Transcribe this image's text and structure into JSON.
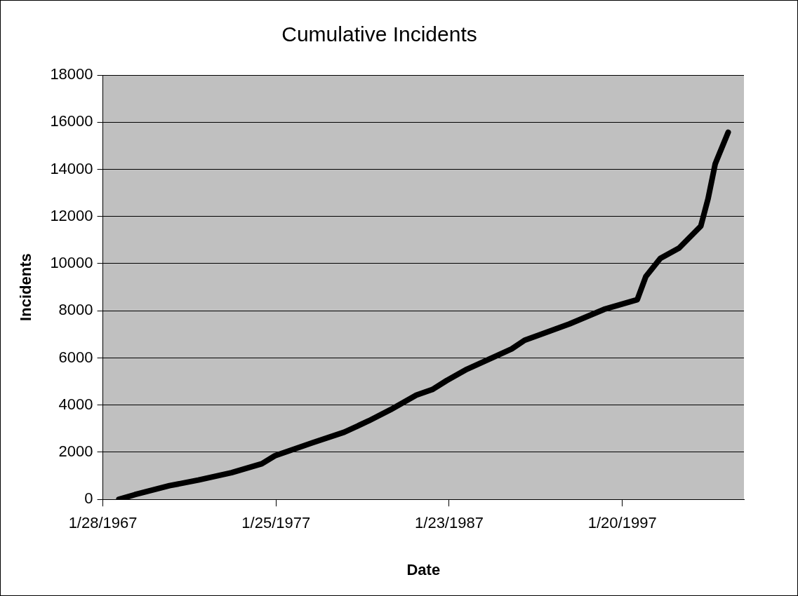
{
  "chart_data": {
    "type": "line",
    "title": "Cumulative Incidents",
    "xlabel": "Date",
    "ylabel": "Incidents",
    "x": [
      "1968-01",
      "1968-12",
      "1970-12",
      "1972-08",
      "1974-07",
      "1976-04",
      "1977-01",
      "1979-03",
      "1981-01",
      "1982-06",
      "1983-09",
      "1985-03",
      "1986-02",
      "1986-12",
      "1988-02",
      "1990-09",
      "1991-06",
      "1994-01",
      "1996-01",
      "1997-12",
      "1998-06",
      "1999-04",
      "2000-05",
      "2001-08",
      "2002-01",
      "2002-06",
      "2003-03"
    ],
    "values": [
      0,
      200,
      580,
      820,
      1130,
      1510,
      1850,
      2400,
      2850,
      3330,
      3800,
      4420,
      4660,
      5040,
      5520,
      6380,
      6750,
      7440,
      8060,
      8470,
      9460,
      10220,
      10660,
      11590,
      12750,
      14230,
      15570
    ],
    "color": "#000000",
    "xlim": [
      "1967-01-28",
      "2004-01-28"
    ],
    "xticks": [
      {
        "value": "1967-01-28",
        "label": "1/28/1967"
      },
      {
        "value": "1977-01-25",
        "label": "1/25/1977"
      },
      {
        "value": "1987-01-23",
        "label": "1/23/1987"
      },
      {
        "value": "1997-01-20",
        "label": "1/20/1997"
      }
    ],
    "ylim": [
      0,
      18000
    ],
    "yticks": [
      0,
      2000,
      4000,
      6000,
      8000,
      10000,
      12000,
      14000,
      16000,
      18000
    ],
    "grid": "y"
  }
}
